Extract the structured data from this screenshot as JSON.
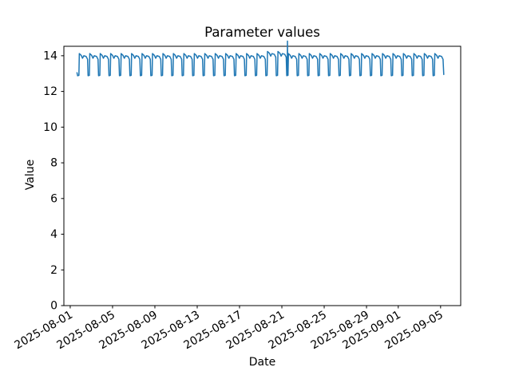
{
  "figure": {
    "background": "#ffffff"
  },
  "chart_data": {
    "type": "line",
    "title": "Parameter values",
    "xlabel": "Date",
    "ylabel": "Value",
    "grid": false,
    "legend": "none",
    "axis_color": "#000000",
    "line_color": "#1f77b4",
    "ylim": [
      0,
      14.53
    ],
    "xlim_days": [
      -0.6,
      36.9
    ],
    "x_epoch": "2025-08-01",
    "y_ticks": [
      0,
      2,
      4,
      6,
      8,
      10,
      12,
      14
    ],
    "x_ticks": [
      {
        "label": "2025-08-01",
        "day": 0
      },
      {
        "label": "2025-08-05",
        "day": 4
      },
      {
        "label": "2025-08-09",
        "day": 8
      },
      {
        "label": "2025-08-13",
        "day": 12
      },
      {
        "label": "2025-08-17",
        "day": 16
      },
      {
        "label": "2025-08-21",
        "day": 20
      },
      {
        "label": "2025-08-25",
        "day": 24
      },
      {
        "label": "2025-08-29",
        "day": 28
      },
      {
        "label": "2025-09-01",
        "day": 31
      },
      {
        "label": "2025-09-05",
        "day": 35
      }
    ],
    "series": [
      {
        "name": "parameter-values",
        "color": "#1f77b4",
        "line_width": 1.5,
        "description": "Daily square-wave oscillation between ~12.9 and ~14.1 from 2025-08-01 to 2025-09-05, with one spike to ~14.8 late on 2025-08-21",
        "start_day": 0.7,
        "n_cycles": 35,
        "cycle_period_days": 0.988,
        "daily_pattern": [
          [
            0.0,
            12.88
          ],
          [
            0.12,
            12.9
          ],
          [
            0.16,
            14.12
          ],
          [
            0.34,
            14.02
          ],
          [
            0.46,
            13.86
          ],
          [
            0.58,
            14.0
          ],
          [
            0.8,
            13.96
          ],
          [
            0.94,
            13.8
          ]
        ],
        "lead_in_point": [
          0.64,
          13.05
        ],
        "tail_point": [
          35.3,
          12.95
        ],
        "peak_boost": {
          "cycles": [
            18,
            19
          ],
          "delta": 0.12,
          "threshold": 13.5
        },
        "spike": {
          "day": 20.53,
          "value": 14.82,
          "base": 12.9,
          "half_width_days": 0.03
        },
        "approx_low": 12.9,
        "approx_high": 14.1
      }
    ]
  }
}
